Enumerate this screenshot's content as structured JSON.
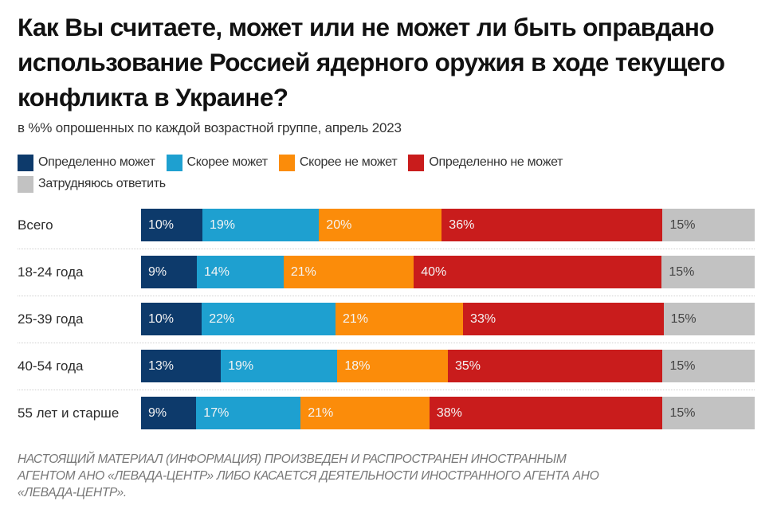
{
  "chart_data": {
    "type": "bar",
    "orientation": "horizontal",
    "stacked": true,
    "title": "Как Вы считаете, может или не может ли быть оправдано использование Россией ядерного оружия в ходе текущего конфликта в Украине?",
    "subtitle": "в %% опрошенных по каждой возрастной группе, апрель 2023",
    "xlabel": "",
    "ylabel": "",
    "xlim": [
      0,
      100
    ],
    "legend_position": "top",
    "categories": [
      "Всего",
      "18-24 года",
      "25-39 года",
      "40-54 года",
      "55 лет и старше"
    ],
    "series": [
      {
        "name": "Определенно может",
        "color": "#0d3a6b",
        "values": [
          10,
          9,
          10,
          13,
          9
        ]
      },
      {
        "name": "Скорее может",
        "color": "#1ea0d0",
        "values": [
          19,
          14,
          22,
          19,
          17
        ]
      },
      {
        "name": "Скорее не может",
        "color": "#fb8c0a",
        "values": [
          20,
          21,
          21,
          18,
          21
        ]
      },
      {
        "name": "Определенно не может",
        "color": "#c91c1c",
        "values": [
          36,
          40,
          33,
          35,
          38
        ]
      },
      {
        "name": "Затрудняюсь ответить",
        "color": "#c2c2c2",
        "values": [
          15,
          15,
          15,
          15,
          15
        ]
      }
    ],
    "value_suffix": "%"
  },
  "footer": {
    "line1": "НАСТОЯЩИЙ МАТЕРИАЛ (ИНФОРМАЦИЯ) ПРОИЗВЕДЕН И РАСПРОСТРАНЕН ИНОСТРАННЫМ",
    "line2": "АГЕНТОМ АНО «ЛЕВАДА-ЦЕНТР» ЛИБО КАСАЕТСЯ ДЕЯТЕЛЬНОСТИ ИНОСТРАННОГО АГЕНТА АНО",
    "line3": "«ЛЕВАДА-ЦЕНТР»."
  }
}
